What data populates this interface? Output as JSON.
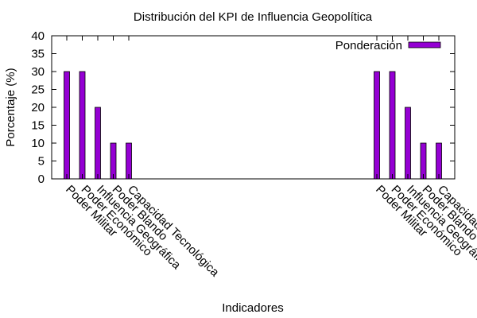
{
  "chart_data": {
    "type": "bar",
    "title": "Distribución del KPI de Influencia Geopolítica",
    "xlabel": "Indicadores",
    "ylabel": "Porcentaje (%)",
    "ylim": [
      0,
      40
    ],
    "yticks": [
      0,
      5,
      10,
      15,
      20,
      25,
      30,
      35,
      40
    ],
    "grid": false,
    "legend_position": "top-right",
    "bar_color": "#9400d3",
    "groups": [
      {
        "categories": [
          "Poder Militar",
          "Poder Económico",
          "Influencia Geográfica",
          "Poder Blando",
          "Capacidad Tecnológica"
        ],
        "values": [
          30,
          30,
          20,
          10,
          10
        ]
      },
      {
        "categories": [
          "Poder Militar",
          "Poder Económico",
          "Influencia Geográfica",
          "Poder Blando",
          "Capacidad Tecnológica"
        ],
        "values": [
          30,
          30,
          20,
          10,
          10
        ]
      }
    ],
    "series": [
      {
        "name": "Ponderación",
        "values": [
          30,
          30,
          20,
          10,
          10,
          30,
          30,
          20,
          10,
          10
        ]
      }
    ]
  }
}
